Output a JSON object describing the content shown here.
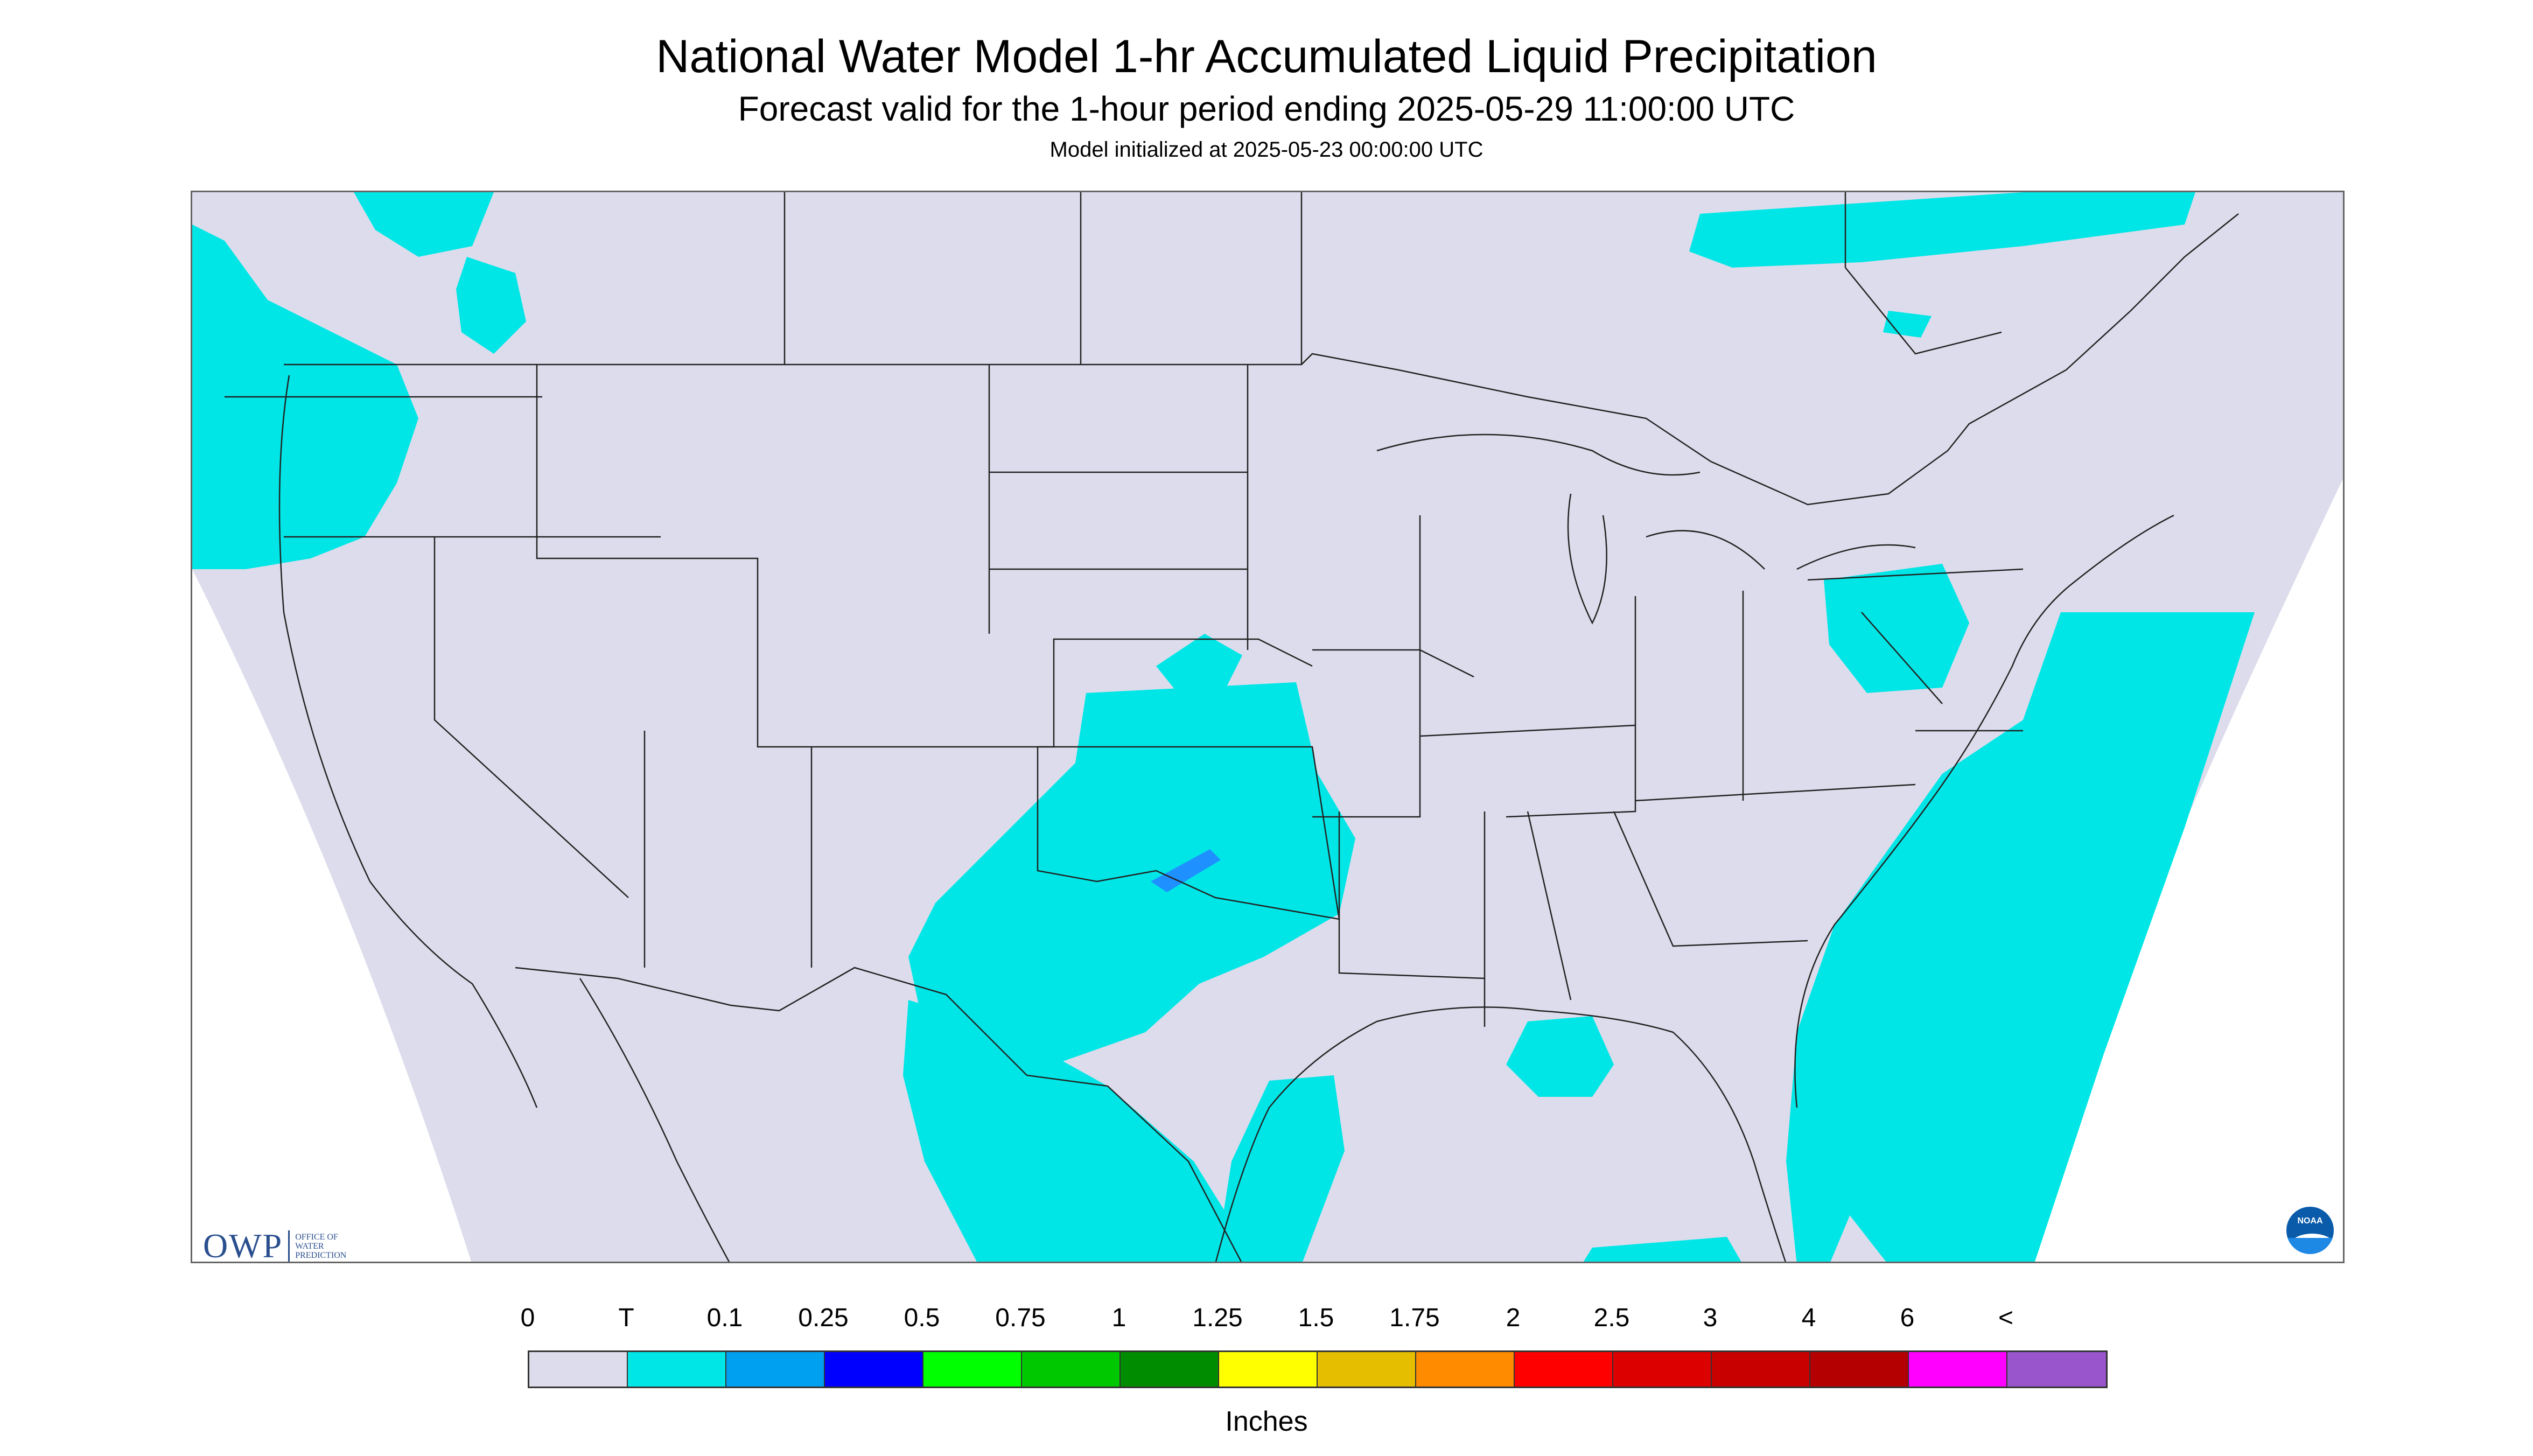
{
  "header": {
    "title": "National Water Model 1-hr Accumulated Liquid Precipitation",
    "subtitle": "Forecast valid for the 1-hour period ending 2025-05-29 11:00:00 UTC",
    "init": "Model initialized at 2025-05-23 00:00:00 UTC"
  },
  "logos": {
    "owp_mark": "OWP",
    "owp_line1": "OFFICE OF",
    "owp_line2": "WATER",
    "owp_line3": "PREDICTION",
    "noaa_label": "NOAA"
  },
  "map": {
    "land_color": "#dcdcec",
    "boundary_color": "#222222",
    "precip_color": "#00e6e6",
    "heavy_color": "#1e90ff",
    "precip_areas": [
      "Pacific Northwest coast",
      "Southern Plains (Texas, Oklahoma, Kansas, New Mexico)",
      "Northern Mexico",
      "Western Gulf coast",
      "Pennsylvania / Mid-Atlantic",
      "Southeast Atlantic coast and offshore",
      "Eastern Florida",
      "Southern Ontario / Quebec"
    ]
  },
  "legend": {
    "labels": [
      "0",
      "T",
      "0.1",
      "0.25",
      "0.5",
      "0.75",
      "1",
      "1.25",
      "1.5",
      "1.75",
      "2",
      "2.5",
      "3",
      "4",
      "6",
      "<"
    ],
    "colors": [
      "#dcdcec",
      "#00e6e6",
      "#00a0f0",
      "#0000ff",
      "#00ff00",
      "#00c800",
      "#008c00",
      "#ffff00",
      "#e6be00",
      "#ff8c00",
      "#ff0000",
      "#dc0000",
      "#c80000",
      "#b40000",
      "#ff00ff",
      "#9955cc"
    ],
    "units": "Inches"
  }
}
